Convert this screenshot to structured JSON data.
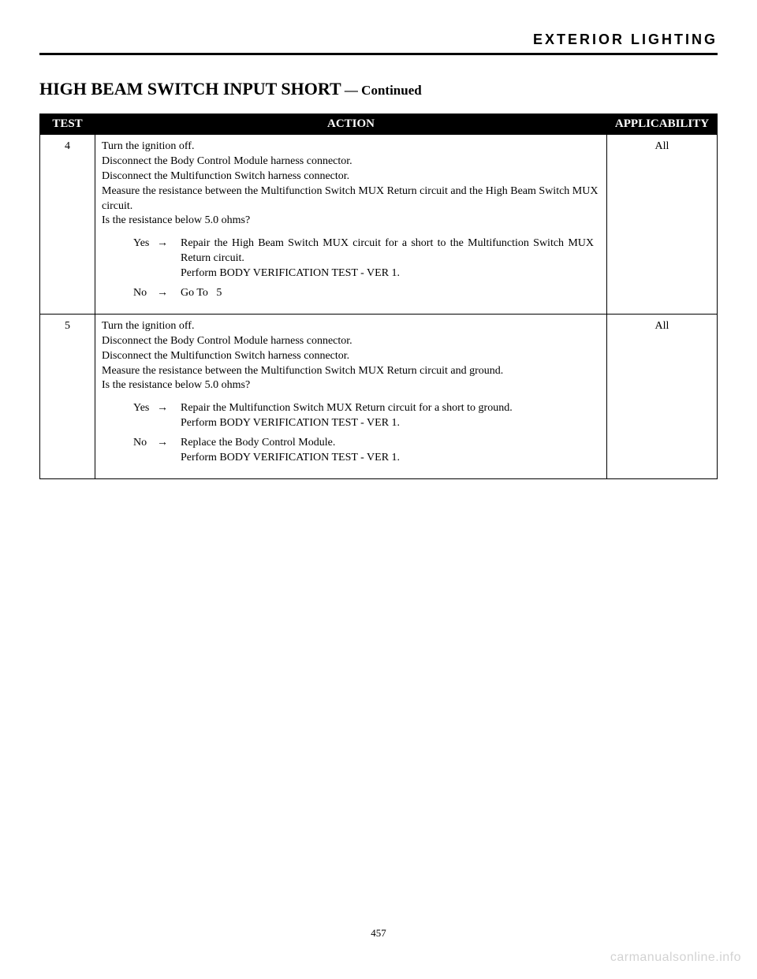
{
  "header": {
    "running_head": "EXTERIOR LIGHTING"
  },
  "title": {
    "main": "HIGH BEAM SWITCH INPUT SHORT",
    "continued": " — Continued"
  },
  "table": {
    "columns": [
      "TEST",
      "ACTION",
      "APPLICABILITY"
    ],
    "rows": [
      {
        "test": "4",
        "applicability": "All",
        "action_lines": [
          "Turn the ignition off.",
          "Disconnect the Body Control Module harness connector.",
          "Disconnect the Multifunction Switch harness connector.",
          "Measure the resistance between the Multifunction Switch MUX Return circuit and the High Beam Switch MUX circuit.",
          "Is the resistance below 5.0 ohms?"
        ],
        "yes_label": "Yes",
        "yes_text": "Repair the High Beam Switch MUX circuit for a short to the Multifunction Switch MUX Return circuit.\nPerform BODY VERIFICATION TEST - VER 1.",
        "no_label": "No",
        "no_text": "Go To   5"
      },
      {
        "test": "5",
        "applicability": "All",
        "action_lines": [
          "Turn the ignition off.",
          "Disconnect the Body Control Module harness connector.",
          "Disconnect the Multifunction Switch harness connector.",
          "Measure the resistance between the Multifunction Switch MUX Return circuit and ground.",
          "Is the resistance below 5.0 ohms?"
        ],
        "yes_label": "Yes",
        "yes_text": "Repair the Multifunction Switch MUX Return circuit for a short to ground.\nPerform BODY VERIFICATION TEST - VER 1.",
        "no_label": "No",
        "no_text": "Replace the Body Control Module.\nPerform BODY VERIFICATION TEST - VER 1."
      }
    ]
  },
  "footer": {
    "page_number": "457",
    "watermark": "carmanualsonline.info"
  },
  "glyphs": {
    "arrow": "→"
  }
}
